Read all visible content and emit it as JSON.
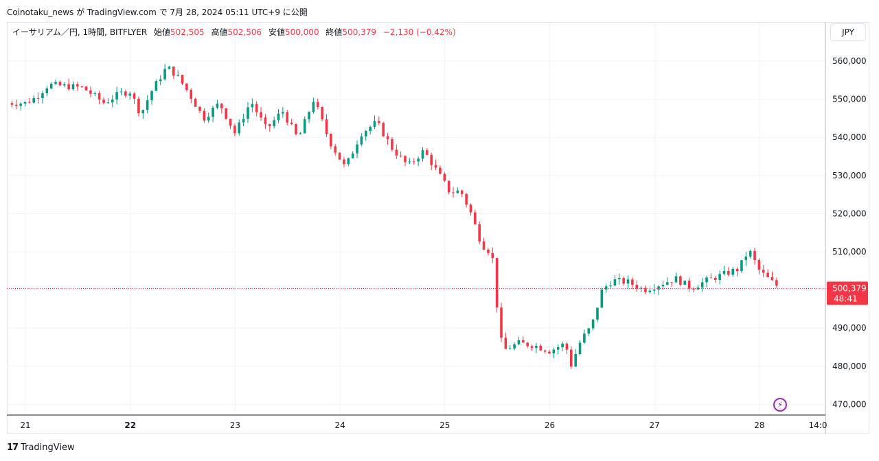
{
  "header": {
    "published_text": "Coinotaku_news が TradingView.com で 7月 28, 2024 05:11 UTC+9 に公開"
  },
  "legend": {
    "symbol": "イーサリアム／円, 1時間, BITFLYER",
    "open_label": "始値",
    "open": "502,505",
    "high_label": "高値",
    "high": "502,506",
    "low_label": "安値",
    "low": "500,000",
    "close_label": "終値",
    "close": "500,379",
    "change": "−2,130 (−0.42%)"
  },
  "currency_button": "JPY",
  "footer": {
    "brand": "TradingView",
    "logo": "17"
  },
  "colors": {
    "up": "#089981",
    "down": "#f23645",
    "grid": "#f0f3fa",
    "axis": "#e0e3eb",
    "text": "#131722",
    "accent": "#9c27b0"
  },
  "chart_data": {
    "type": "candlestick",
    "symbol": "ETH/JPY",
    "interval": "1h",
    "y_ticks": [
      "560,000",
      "550,000",
      "540,000",
      "530,000",
      "520,000",
      "510,000",
      "500,000",
      "490,000",
      "480,000",
      "470,000"
    ],
    "ylim": [
      467000,
      564000
    ],
    "x_ticks": [
      "21",
      "22",
      "23",
      "24",
      "25",
      "26",
      "27",
      "28",
      "14:0"
    ],
    "x_tick_bold": [
      false,
      true,
      false,
      false,
      false,
      false,
      false,
      false,
      false
    ],
    "last_price_label": "500,379",
    "countdown_label": "48:41",
    "last_price": 500379,
    "anchors": [
      {
        "d": 0.0,
        "p": 549000
      },
      {
        "d": 0.1,
        "p": 550500
      },
      {
        "d": 0.22,
        "p": 553800
      },
      {
        "d": 0.35,
        "p": 553500
      },
      {
        "d": 0.55,
        "p": 553000
      },
      {
        "d": 0.75,
        "p": 549000
      },
      {
        "d": 0.9,
        "p": 551500
      },
      {
        "d": 1.0,
        "p": 552000
      },
      {
        "d": 1.1,
        "p": 546000
      },
      {
        "d": 1.2,
        "p": 552000
      },
      {
        "d": 1.35,
        "p": 558500
      },
      {
        "d": 1.45,
        "p": 556000
      },
      {
        "d": 1.55,
        "p": 552000
      },
      {
        "d": 1.7,
        "p": 545000
      },
      {
        "d": 1.85,
        "p": 549000
      },
      {
        "d": 2.0,
        "p": 541000
      },
      {
        "d": 2.15,
        "p": 549500
      },
      {
        "d": 2.3,
        "p": 542000
      },
      {
        "d": 2.45,
        "p": 547000
      },
      {
        "d": 2.6,
        "p": 539500
      },
      {
        "d": 2.75,
        "p": 550000
      },
      {
        "d": 2.9,
        "p": 539000
      },
      {
        "d": 3.05,
        "p": 532000
      },
      {
        "d": 3.2,
        "p": 541000
      },
      {
        "d": 3.35,
        "p": 544000
      },
      {
        "d": 3.5,
        "p": 537000
      },
      {
        "d": 3.65,
        "p": 532500
      },
      {
        "d": 3.8,
        "p": 536500
      },
      {
        "d": 3.95,
        "p": 530000
      },
      {
        "d": 4.05,
        "p": 525500
      },
      {
        "d": 4.15,
        "p": 526000
      },
      {
        "d": 4.25,
        "p": 520000
      },
      {
        "d": 4.35,
        "p": 512000
      },
      {
        "d": 4.45,
        "p": 509500
      },
      {
        "d": 4.5,
        "p": 495000
      },
      {
        "d": 4.55,
        "p": 484000
      },
      {
        "d": 4.7,
        "p": 486000
      },
      {
        "d": 4.85,
        "p": 485500
      },
      {
        "d": 5.0,
        "p": 484000
      },
      {
        "d": 5.15,
        "p": 486000
      },
      {
        "d": 5.2,
        "p": 480000
      },
      {
        "d": 5.3,
        "p": 487000
      },
      {
        "d": 5.4,
        "p": 490500
      },
      {
        "d": 5.5,
        "p": 500000
      },
      {
        "d": 5.6,
        "p": 502500
      },
      {
        "d": 5.75,
        "p": 502000
      },
      {
        "d": 5.9,
        "p": 500000
      },
      {
        "d": 6.05,
        "p": 501500
      },
      {
        "d": 6.2,
        "p": 503000
      },
      {
        "d": 6.35,
        "p": 500500
      },
      {
        "d": 6.5,
        "p": 502500
      },
      {
        "d": 6.65,
        "p": 504000
      },
      {
        "d": 6.8,
        "p": 505500
      },
      {
        "d": 6.9,
        "p": 510500
      },
      {
        "d": 7.0,
        "p": 505000
      },
      {
        "d": 7.1,
        "p": 502500
      },
      {
        "d": 7.2,
        "p": 500379
      }
    ]
  }
}
